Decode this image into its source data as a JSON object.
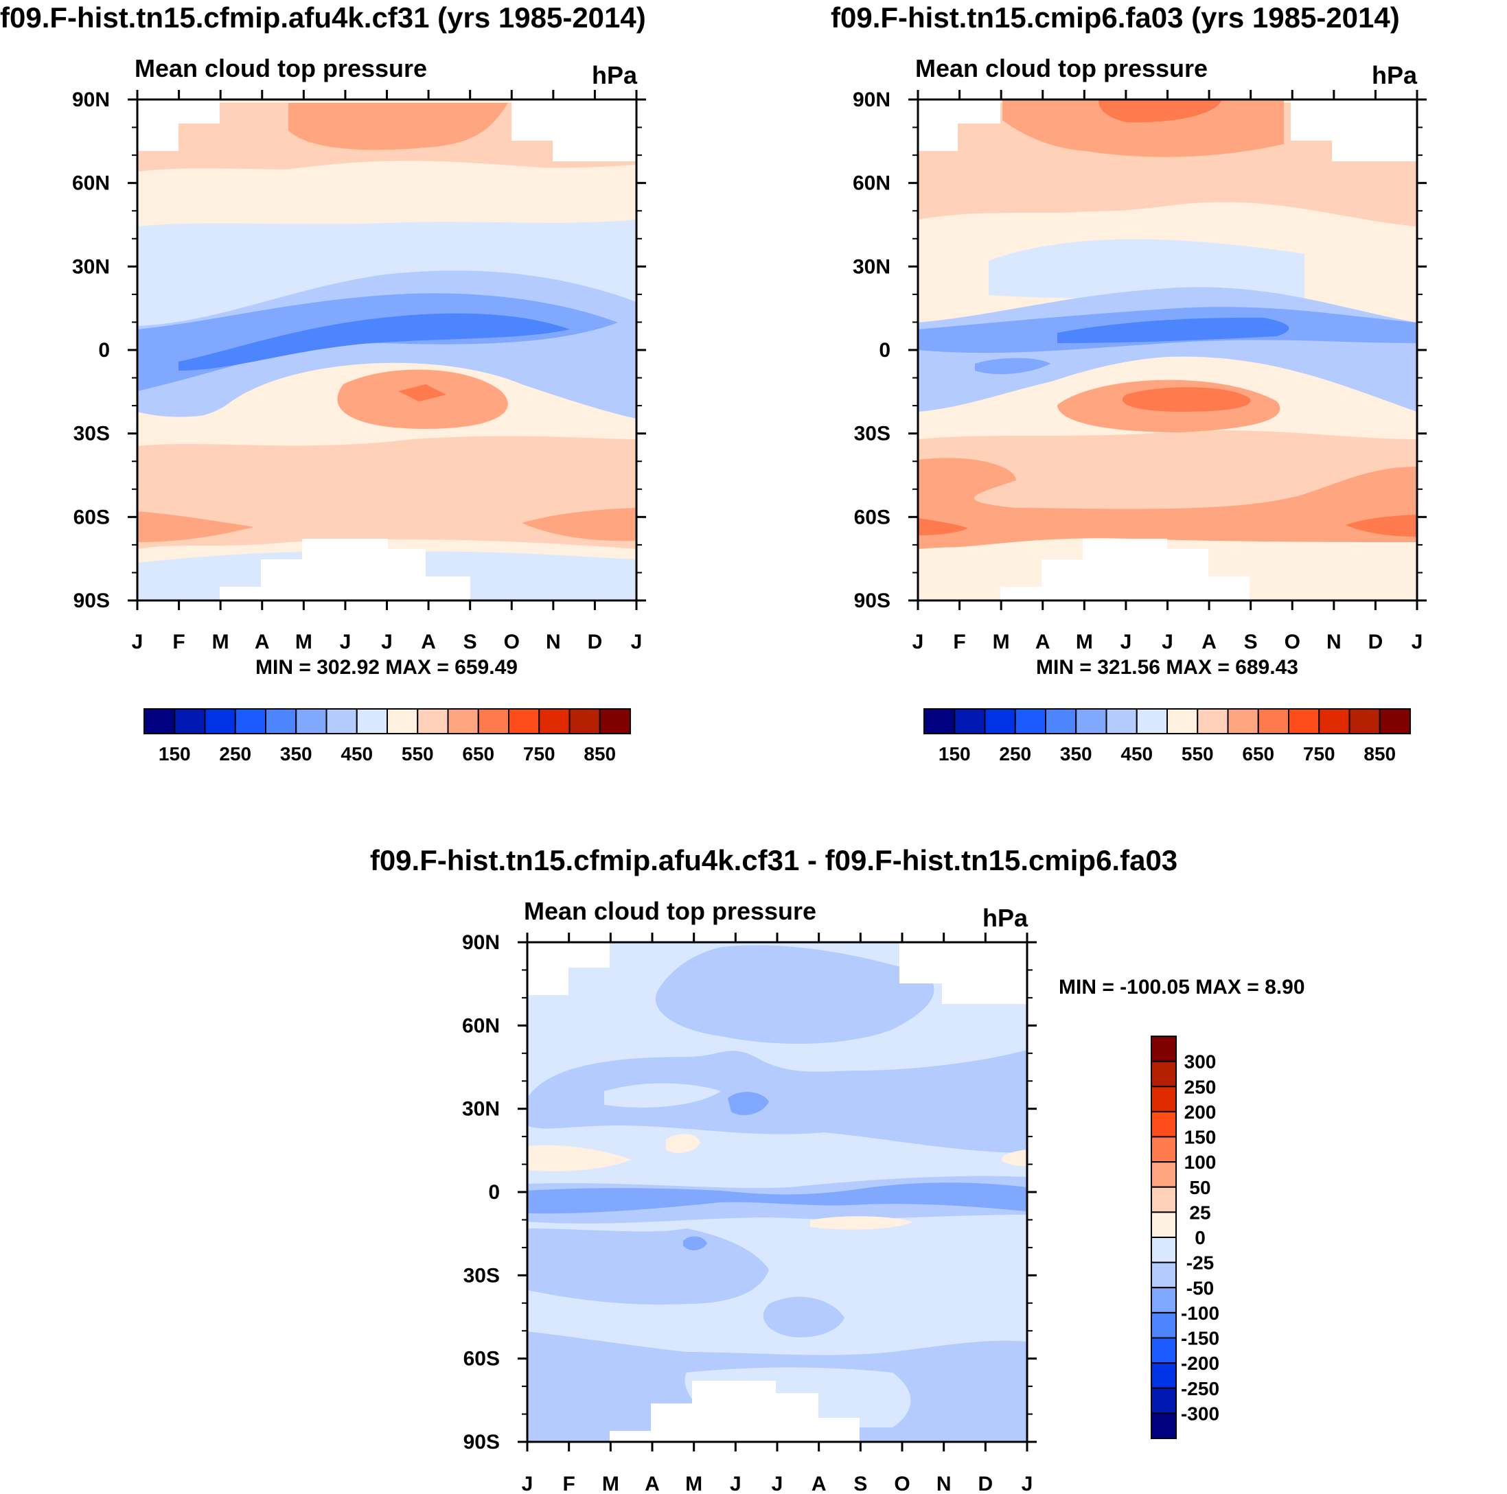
{
  "colors": {
    "levels": [
      "#000080",
      "#0019b3",
      "#0033e6",
      "#1a5cff",
      "#4d85ff",
      "#80a8ff",
      "#b3cbff",
      "#d9e8ff",
      "#fff0e0",
      "#ffd1b8",
      "#ffa680",
      "#ff7a4d",
      "#ff4d1a",
      "#e02b00",
      "#b31f00",
      "#800000"
    ]
  },
  "chart_data": [
    {
      "type": "heatmap",
      "panel": "top-left",
      "title": "f09.F-hist.tn15.cfmip.afu4k.cf31 (yrs 1985-2014)",
      "subtitle": "Mean cloud top pressure",
      "units": "hPa",
      "x_ticks": [
        "J",
        "F",
        "M",
        "A",
        "M",
        "J",
        "J",
        "A",
        "S",
        "O",
        "N",
        "D",
        "J"
      ],
      "y_ticks": [
        "90N",
        "60N",
        "30N",
        "0",
        "30S",
        "60S",
        "90S"
      ],
      "stats": "MIN = 302.92 MAX = 659.49",
      "colorbar_labels": [
        "150",
        "250",
        "350",
        "450",
        "550",
        "650",
        "750",
        "850"
      ],
      "colorbar_orientation": "horizontal"
    },
    {
      "type": "heatmap",
      "panel": "top-right",
      "title": "f09.F-hist.tn15.cmip6.fa03 (yrs 1985-2014)",
      "subtitle": "Mean cloud top pressure",
      "units": "hPa",
      "x_ticks": [
        "J",
        "F",
        "M",
        "A",
        "M",
        "J",
        "J",
        "A",
        "S",
        "O",
        "N",
        "D",
        "J"
      ],
      "y_ticks": [
        "90N",
        "60N",
        "30N",
        "0",
        "30S",
        "60S",
        "90S"
      ],
      "stats": "MIN = 321.56 MAX = 689.43",
      "colorbar_labels": [
        "150",
        "250",
        "350",
        "450",
        "550",
        "650",
        "750",
        "850"
      ],
      "colorbar_orientation": "horizontal"
    },
    {
      "type": "heatmap",
      "panel": "bottom",
      "title": "f09.F-hist.tn15.cfmip.afu4k.cf31 - f09.F-hist.tn15.cmip6.fa03",
      "subtitle": "Mean cloud top pressure",
      "units": "hPa",
      "x_ticks": [
        "J",
        "F",
        "M",
        "A",
        "M",
        "J",
        "J",
        "A",
        "S",
        "O",
        "N",
        "D",
        "J"
      ],
      "y_ticks": [
        "90N",
        "60N",
        "30N",
        "0",
        "30S",
        "60S",
        "90S"
      ],
      "stats": "MIN = -100.05 MAX =   8.90",
      "colorbar_labels": [
        "300",
        "250",
        "200",
        "150",
        "100",
        "50",
        "25",
        "0",
        "-25",
        "-50",
        "-100",
        "-150",
        "-200",
        "-250",
        "-300"
      ],
      "colorbar_orientation": "vertical"
    }
  ]
}
